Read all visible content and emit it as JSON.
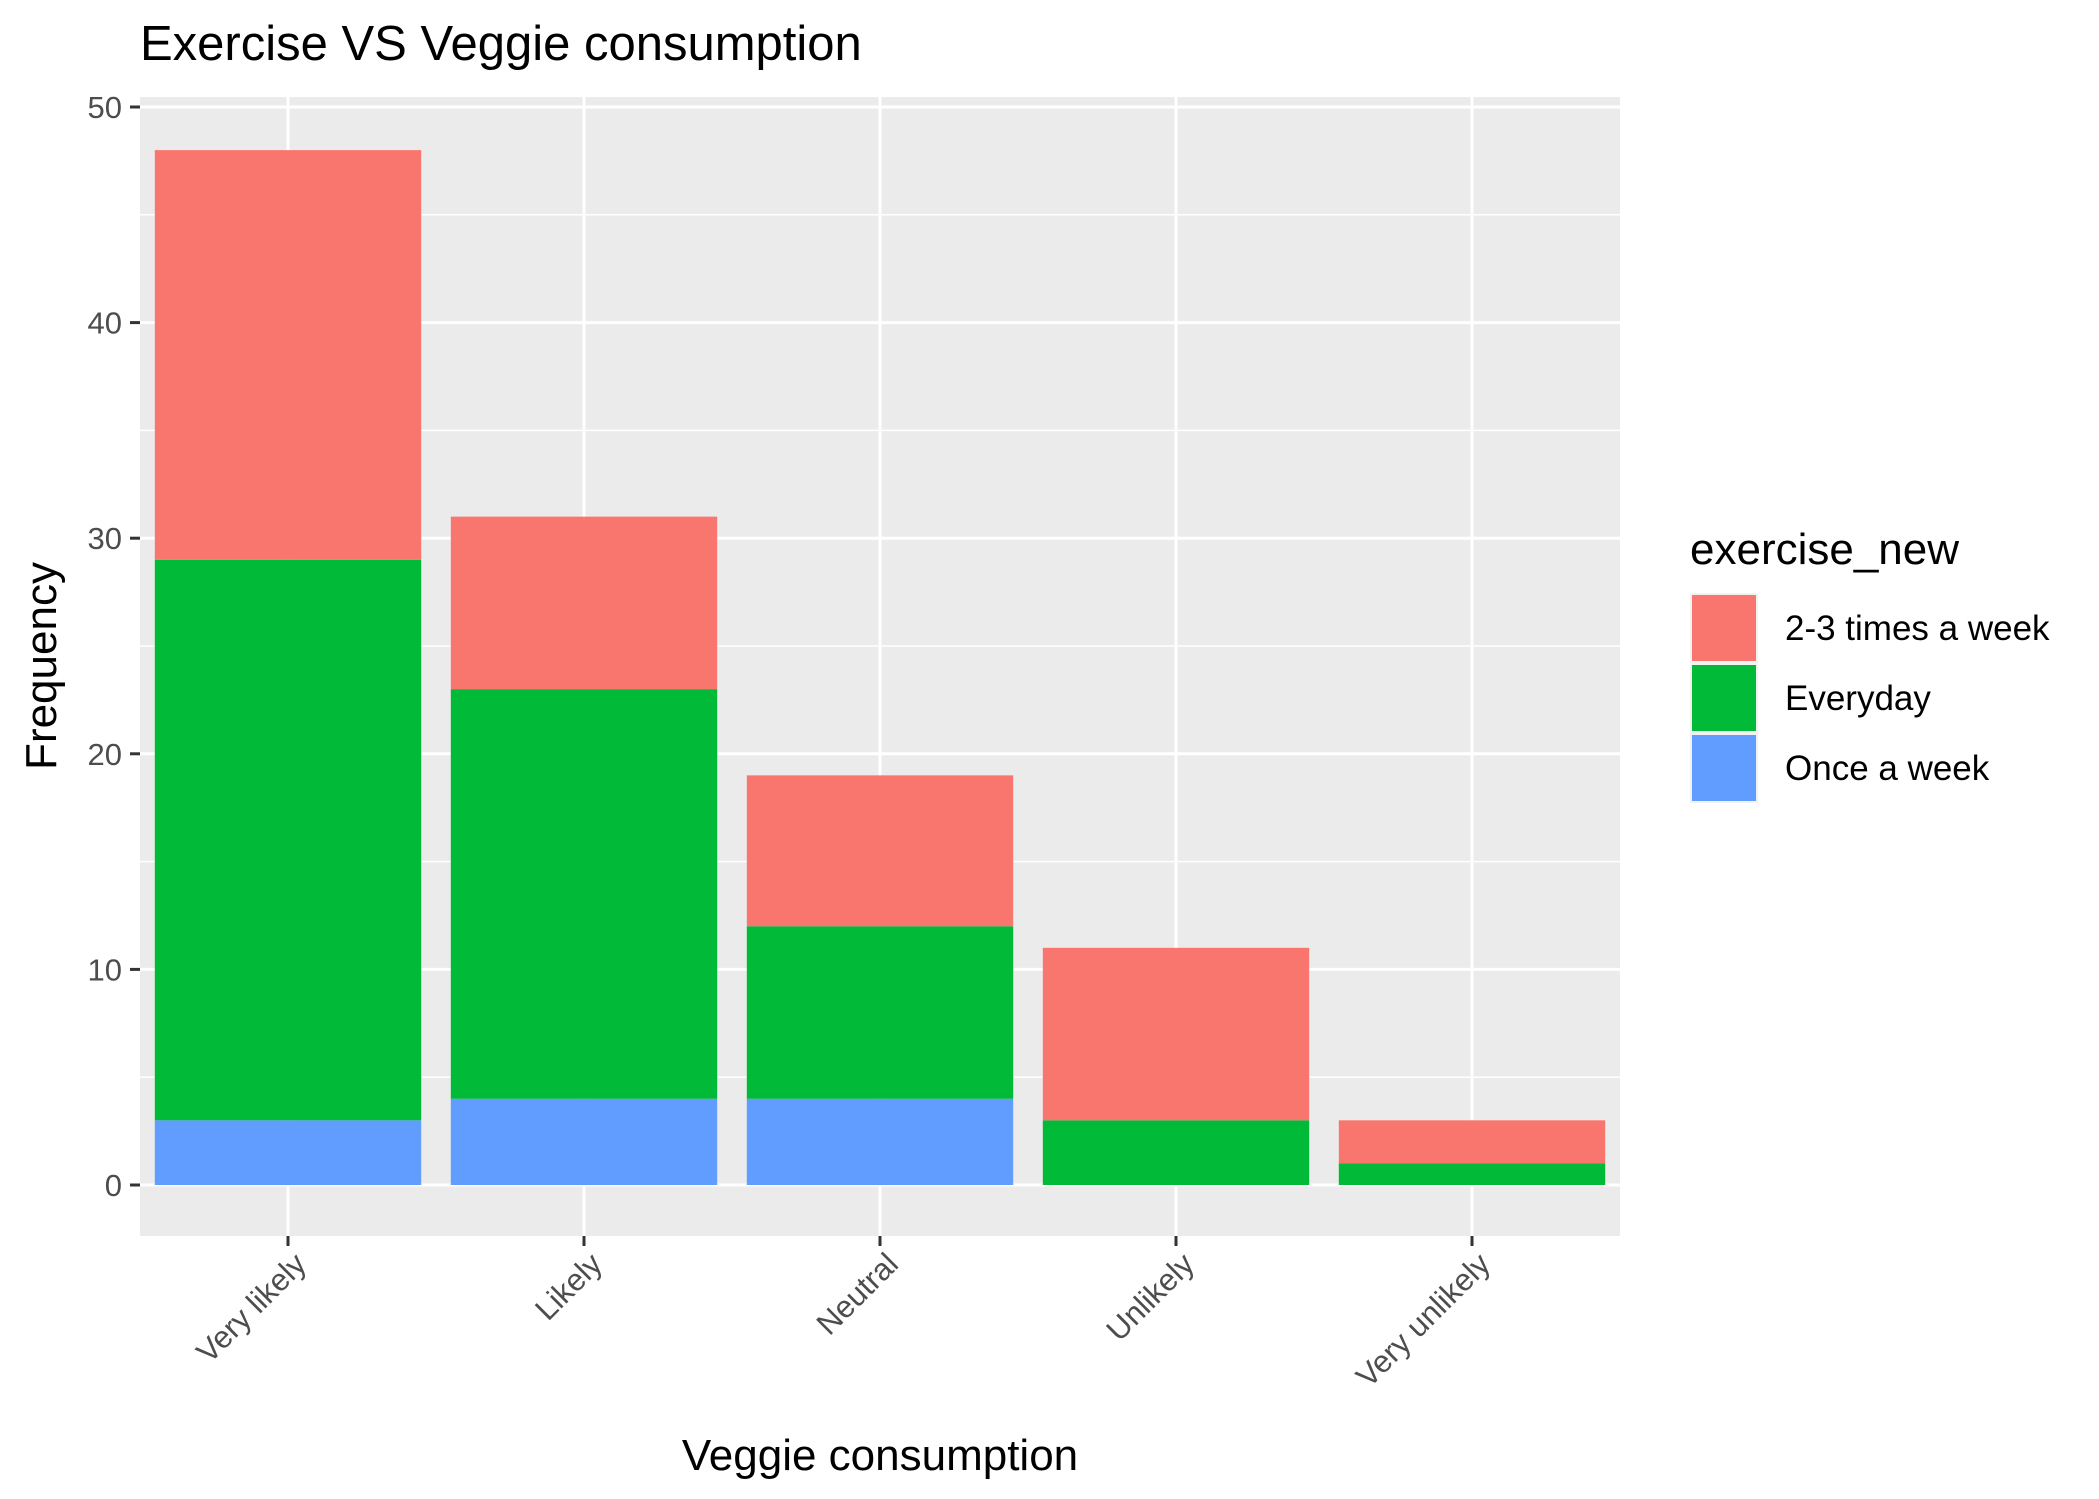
{
  "chart_data": {
    "type": "bar",
    "stacked": true,
    "title": "Exercise VS Veggie consumption",
    "xlabel": "Veggie consumption",
    "ylabel": "Frequency",
    "categories": [
      "Very likely",
      "Likely",
      "Neutral",
      "Unlikely",
      "Very unlikely"
    ],
    "series": [
      {
        "name": "Once a week",
        "color": "#619CFF",
        "values": [
          3,
          4,
          4,
          0,
          0
        ]
      },
      {
        "name": "Everyday",
        "color": "#00BA38",
        "values": [
          26,
          19,
          8,
          3,
          1
        ]
      },
      {
        "name": "2-3 times a week",
        "color": "#F8766D",
        "values": [
          19,
          8,
          7,
          8,
          2
        ]
      }
    ],
    "ylim": [
      0,
      50
    ],
    "yticks": [
      0,
      10,
      20,
      30,
      40,
      50
    ],
    "grid": true,
    "panel_background": "#EBEBEB",
    "legend": {
      "title": "exercise_new",
      "placement": "right",
      "order": [
        "2-3 times a week",
        "Everyday",
        "Once a week"
      ]
    }
  }
}
